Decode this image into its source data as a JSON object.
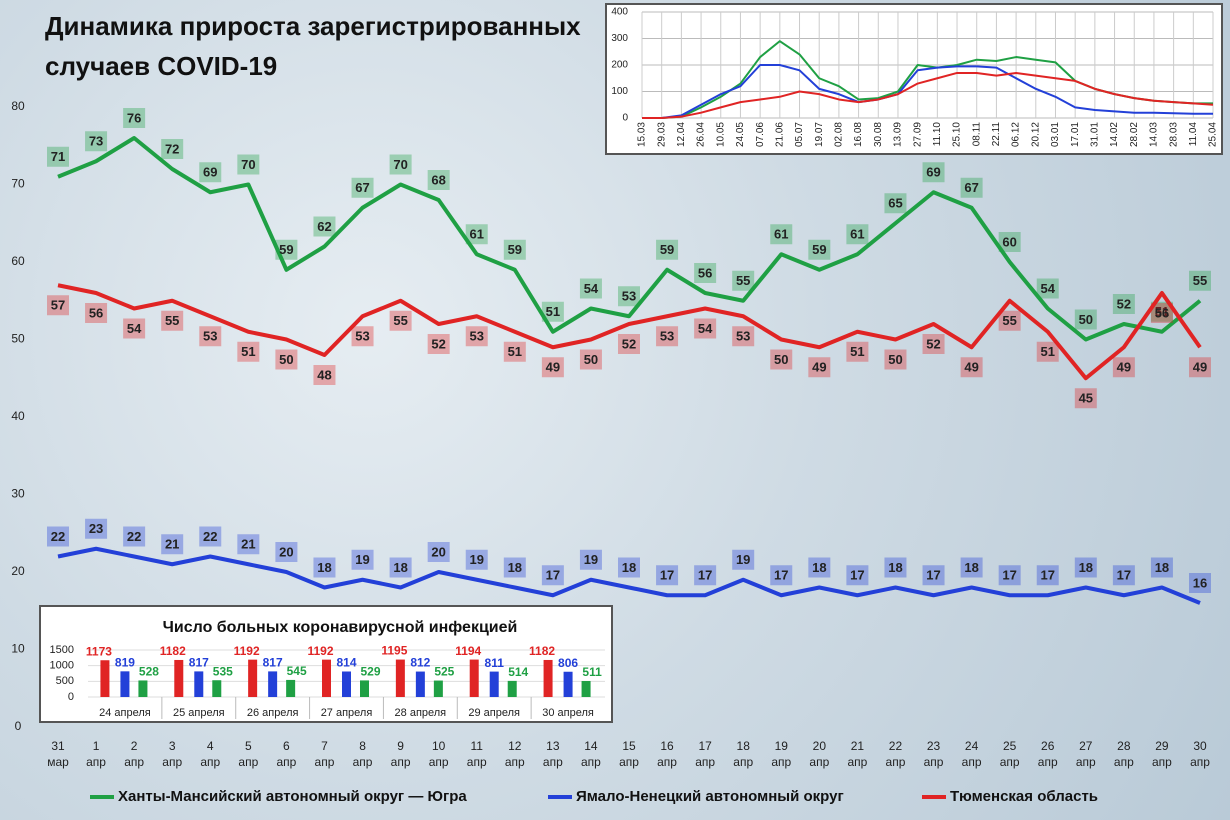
{
  "chart_data": [
    {
      "type": "line",
      "title": "Динамика прироста зарегистрированных случаев COVID-19",
      "categories": [
        "31 мар",
        "1 апр",
        "2 апр",
        "3 апр",
        "4 апр",
        "5 апр",
        "6 апр",
        "7 апр",
        "8 апр",
        "9 апр",
        "10 апр",
        "11 апр",
        "12 апр",
        "13 апр",
        "14 апр",
        "15 апр",
        "16 апр",
        "17 апр",
        "18 апр",
        "19 апр",
        "20 апр",
        "21 апр",
        "22 апр",
        "23 апр",
        "24 апр",
        "25 апр",
        "26 апр",
        "27 апр",
        "28 апр",
        "29 апр",
        "30 апр"
      ],
      "series": [
        {
          "name": "Ханты-Мансийский автономный округ — Югра",
          "color": "#1fa044",
          "values": [
            71,
            73,
            76,
            72,
            69,
            70,
            59,
            62,
            67,
            70,
            68,
            61,
            59,
            51,
            54,
            53,
            59,
            56,
            55,
            61,
            59,
            61,
            65,
            69,
            67,
            60,
            54,
            50,
            52,
            51,
            55
          ]
        },
        {
          "name": "Ямало-Ненецкий автономный округ",
          "color": "#2340d8",
          "values": [
            22,
            23,
            22,
            21,
            22,
            21,
            20,
            18,
            19,
            18,
            20,
            19,
            18,
            17,
            19,
            18,
            17,
            17,
            19,
            17,
            18,
            17,
            18,
            17,
            18,
            17,
            17,
            18,
            17,
            18,
            16
          ]
        },
        {
          "name": "Тюменская область",
          "color": "#e02424",
          "values": [
            57,
            56,
            54,
            55,
            53,
            51,
            50,
            48,
            53,
            55,
            52,
            53,
            51,
            49,
            50,
            52,
            53,
            54,
            53,
            50,
            49,
            51,
            50,
            52,
            49,
            55,
            51,
            45,
            49,
            56,
            49
          ]
        }
      ],
      "ylim": [
        0,
        80
      ],
      "yticks": [
        0,
        10,
        20,
        30,
        40,
        50,
        60,
        70,
        80
      ]
    },
    {
      "type": "line",
      "categories": [
        "15.03",
        "29.03",
        "12.04",
        "26.04",
        "10.05",
        "24.05",
        "07.06",
        "21.06",
        "05.07",
        "19.07",
        "02.08",
        "16.08",
        "30.08",
        "13.09",
        "27.09",
        "11.10",
        "25.10",
        "08.11",
        "22.11",
        "06.12",
        "20.12",
        "03.01",
        "17.01",
        "31.01",
        "14.02",
        "28.02",
        "14.03",
        "28.03",
        "11.04",
        "25.04"
      ],
      "series": [
        {
          "color": "#1fa044",
          "values": [
            0,
            0,
            5,
            40,
            80,
            130,
            230,
            290,
            240,
            150,
            120,
            70,
            75,
            100,
            200,
            190,
            200,
            220,
            215,
            230,
            220,
            210,
            140,
            110,
            90,
            75,
            65,
            60,
            55,
            55
          ]
        },
        {
          "color": "#2340d8",
          "values": [
            0,
            0,
            10,
            50,
            90,
            120,
            200,
            200,
            180,
            110,
            90,
            60,
            70,
            90,
            180,
            190,
            195,
            195,
            190,
            150,
            110,
            80,
            40,
            30,
            25,
            20,
            20,
            18,
            16,
            16
          ]
        },
        {
          "color": "#e02424",
          "values": [
            0,
            0,
            5,
            20,
            40,
            60,
            70,
            80,
            100,
            90,
            70,
            60,
            70,
            90,
            130,
            150,
            170,
            170,
            160,
            170,
            160,
            150,
            140,
            110,
            90,
            75,
            65,
            60,
            55,
            50
          ]
        }
      ],
      "ylim": [
        0,
        400
      ],
      "yticks": [
        0,
        100,
        200,
        300,
        400
      ],
      "grid": true
    },
    {
      "type": "bar",
      "title": "Число больных коронавирусной  инфекцией",
      "categories": [
        "24 апреля",
        "25 апреля",
        "26 апреля",
        "27 апреля",
        "28 апреля",
        "29 апреля",
        "30 апреля"
      ],
      "series": [
        {
          "color": "#e02424",
          "values": [
            1173,
            1182,
            1192,
            1192,
            1195,
            1194,
            1182
          ]
        },
        {
          "color": "#2340d8",
          "values": [
            819,
            817,
            817,
            814,
            812,
            811,
            806
          ]
        },
        {
          "color": "#1fa044",
          "values": [
            528,
            535,
            545,
            529,
            525,
            514,
            511
          ]
        }
      ],
      "ylim": [
        0,
        1500
      ],
      "yticks": [
        0,
        500,
        1000,
        1500
      ]
    }
  ]
}
